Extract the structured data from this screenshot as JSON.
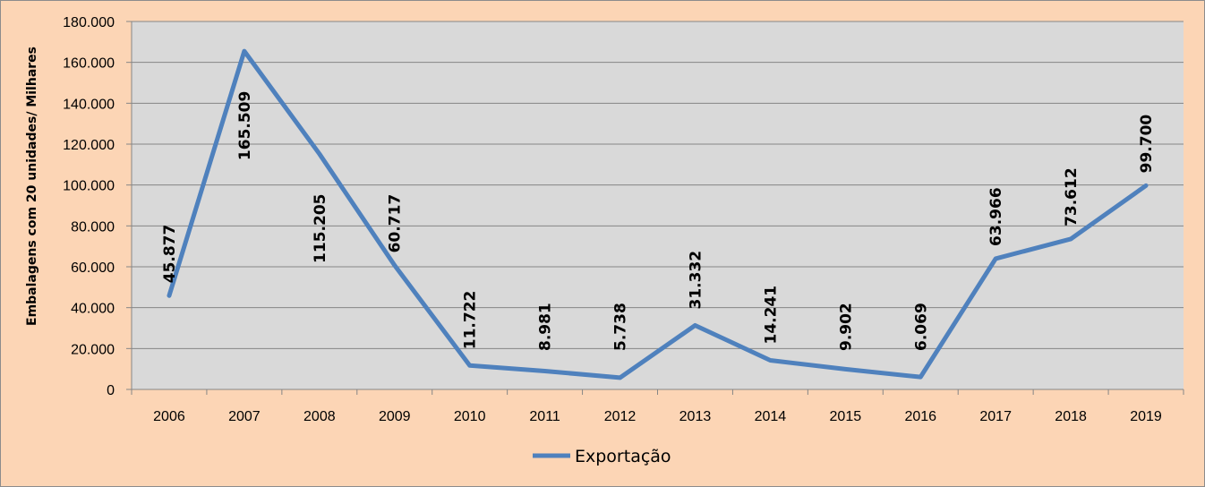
{
  "chart_data": {
    "type": "line",
    "categories": [
      "2006",
      "2007",
      "2008",
      "2009",
      "2010",
      "2011",
      "2012",
      "2013",
      "2014",
      "2015",
      "2016",
      "2017",
      "2018",
      "2019"
    ],
    "series": [
      {
        "name": "Exportação",
        "color": "#4f81bd",
        "values": [
          45877,
          165509,
          115205,
          60717,
          11722,
          8981,
          5738,
          31332,
          14241,
          9902,
          6069,
          63966,
          73612,
          99700
        ],
        "labels": [
          "45.877",
          "165.509",
          "115.205",
          "60.717",
          "11.722",
          "8.981",
          "5.738",
          "31.332",
          "14.241",
          "9.902",
          "6.069",
          "63.966",
          "73.612",
          "99.700"
        ]
      }
    ],
    "ylabel": "Embalagens com 20 unidades/ Milhares",
    "xlabel": "",
    "ylim": [
      0,
      180000
    ],
    "yticks": [
      0,
      20000,
      40000,
      60000,
      80000,
      100000,
      120000,
      140000,
      160000,
      180000
    ],
    "ytick_labels": [
      "0",
      "20.000",
      "40.000",
      "60.000",
      "80.000",
      "100.000",
      "120.000",
      "140.000",
      "160.000",
      "180.000"
    ],
    "grid": true,
    "legend": "bottom",
    "plot_background": "#d9d9d9",
    "chart_background": "#fcd5b5"
  }
}
